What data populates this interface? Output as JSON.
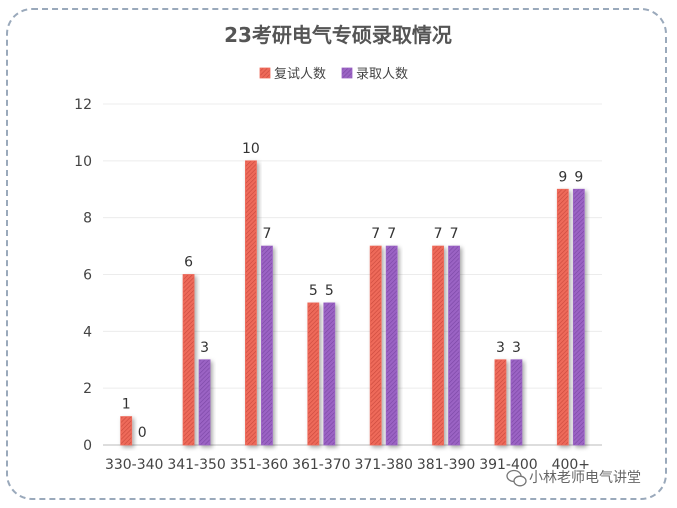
{
  "chart_data": {
    "type": "bar",
    "title": "23考研电气专硕录取情况",
    "categories": [
      "330-340",
      "341-350",
      "351-360",
      "361-370",
      "371-380",
      "381-390",
      "391-400",
      "400+"
    ],
    "series": [
      {
        "name": "复试人数",
        "values": [
          1,
          6,
          10,
          5,
          7,
          7,
          3,
          9
        ],
        "color": "#ee6a5a"
      },
      {
        "name": "录取人数",
        "values": [
          0,
          3,
          7,
          5,
          7,
          7,
          3,
          9
        ],
        "color": "#9b64c4"
      }
    ],
    "ylim": [
      0,
      12
    ],
    "yticks": [
      0,
      2,
      4,
      6,
      8,
      10,
      12
    ],
    "grid": true,
    "legend_position": "top-center",
    "xlabel": "",
    "ylabel": ""
  },
  "watermark": {
    "text": "小林老师电气讲堂",
    "icon": "wechat-icon"
  }
}
